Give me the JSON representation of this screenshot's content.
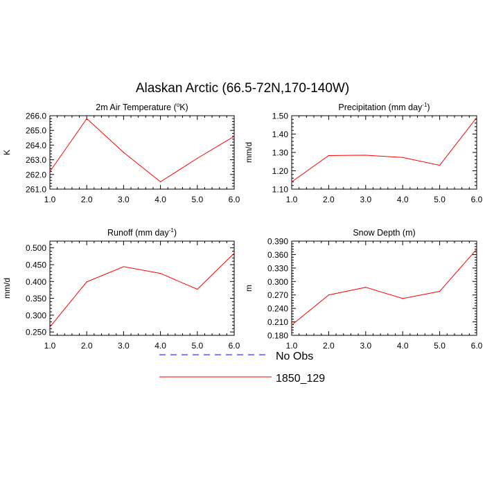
{
  "figure": {
    "title": "Alaskan Arctic (66.5-72N,170-140W)",
    "legend": [
      {
        "label": "No Obs",
        "color": "#0000ff",
        "dash": true
      },
      {
        "label": "1850_129",
        "color": "#ff0000",
        "dash": false
      }
    ]
  },
  "chart_data": [
    {
      "type": "line",
      "title": "2m Air Temperature (",
      "title_sup": "o",
      "title_tail": "K)",
      "ylabel": "K",
      "xlim": [
        1,
        6
      ],
      "ylim": [
        261.0,
        266.0
      ],
      "x_ticks": [
        "1.0",
        "2.0",
        "3.0",
        "4.0",
        "5.0",
        "6.0"
      ],
      "y_ticks": [
        261.0,
        262.0,
        263.0,
        264.0,
        265.0,
        266.0
      ],
      "y_tick_labels": [
        "261.0",
        "262.0",
        "263.0",
        "264.0",
        "265.0",
        "266.0"
      ],
      "grid": false,
      "series": [
        {
          "name": "1850_129",
          "color": "#ff0000",
          "x": [
            1,
            2,
            3,
            4,
            5,
            6
          ],
          "y": [
            262.2,
            265.8,
            263.5,
            261.5,
            263.1,
            264.6
          ]
        }
      ]
    },
    {
      "type": "line",
      "title": "Precipitation (mm day",
      "title_sup": "-1",
      "title_tail": ")",
      "ylabel": "mm/d",
      "xlim": [
        1,
        6
      ],
      "ylim": [
        1.1,
        1.5
      ],
      "x_ticks": [
        "1.0",
        "2.0",
        "3.0",
        "4.0",
        "5.0",
        "6.0"
      ],
      "y_ticks": [
        1.1,
        1.2,
        1.3,
        1.4,
        1.5
      ],
      "y_tick_labels": [
        "1.10",
        "1.20",
        "1.30",
        "1.40",
        "1.50"
      ],
      "grid": false,
      "series": [
        {
          "name": "1850_129",
          "color": "#ff0000",
          "x": [
            1,
            2,
            3,
            4,
            5,
            6
          ],
          "y": [
            1.14,
            1.283,
            1.285,
            1.273,
            1.23,
            1.49
          ]
        }
      ]
    },
    {
      "type": "line",
      "title": "Runoff (mm day",
      "title_sup": "-1",
      "title_tail": ")",
      "ylabel": "mm/d",
      "xlim": [
        1,
        6
      ],
      "ylim": [
        0.24,
        0.52
      ],
      "x_ticks": [
        "1.0",
        "2.0",
        "3.0",
        "4.0",
        "5.0",
        "6.0"
      ],
      "y_ticks": [
        0.25,
        0.3,
        0.35,
        0.4,
        0.45,
        0.5
      ],
      "y_tick_labels": [
        "0.250",
        "0.300",
        "0.350",
        "0.400",
        "0.450",
        "0.500"
      ],
      "grid": false,
      "series": [
        {
          "name": "1850_129",
          "color": "#ff0000",
          "x": [
            1,
            2,
            3,
            4,
            5,
            6
          ],
          "y": [
            0.265,
            0.399,
            0.444,
            0.424,
            0.377,
            0.484
          ]
        }
      ]
    },
    {
      "type": "line",
      "title": "Snow Depth (m)",
      "title_sup": "",
      "title_tail": "",
      "ylabel": "m",
      "xlim": [
        1,
        6
      ],
      "ylim": [
        0.18,
        0.39
      ],
      "x_ticks": [
        "1.0",
        "2.0",
        "3.0",
        "4.0",
        "5.0",
        "6.0"
      ],
      "y_ticks": [
        0.18,
        0.21,
        0.24,
        0.27,
        0.3,
        0.33,
        0.36,
        0.39
      ],
      "y_tick_labels": [
        "0.180",
        "0.210",
        "0.240",
        "0.270",
        "0.300",
        "0.330",
        "0.360",
        "0.390"
      ],
      "grid": false,
      "series": [
        {
          "name": "1850_129",
          "color": "#ff0000",
          "x": [
            1,
            2,
            3,
            4,
            5,
            6
          ],
          "y": [
            0.203,
            0.27,
            0.287,
            0.262,
            0.278,
            0.372
          ]
        }
      ]
    }
  ]
}
